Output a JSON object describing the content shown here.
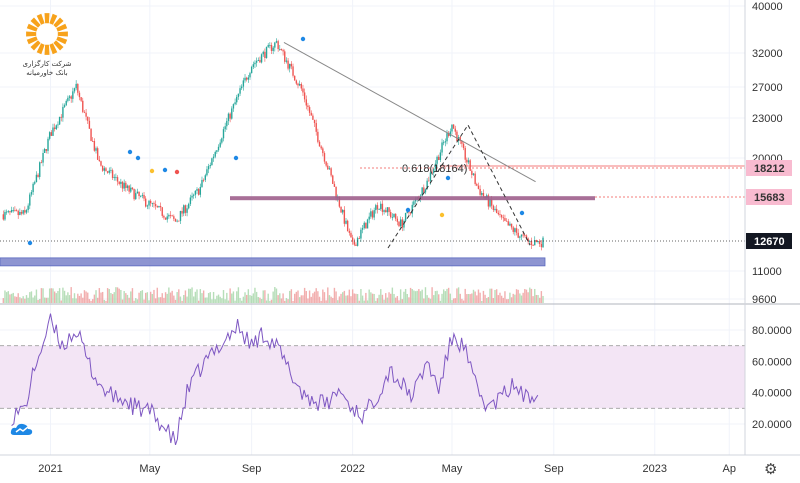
{
  "logo": {
    "line1": "شرکت کارگزاری",
    "line2": "بانک خاورمیانه",
    "icon": "sun-logo-icon"
  },
  "settings": {
    "icon": "gear-icon",
    "glyph": "⚙"
  },
  "colors": {
    "up": "#26a69a",
    "down": "#ef5350",
    "rsi": "#7e57c2",
    "rsi_band": "#f3e5f5",
    "support": "#7b83c9",
    "resistance": "#9e5f8c",
    "fib": "#ef5350",
    "trend": "#888888"
  },
  "chart_data": [
    {
      "type": "candlestick",
      "y_scale": "log",
      "ylim": [
        9000,
        42000
      ],
      "x": [
        "2020-12-01",
        "2021-01-01",
        "2021-02-01",
        "2021-03-01",
        "2021-04-01",
        "2021-05-01",
        "2021-06-01",
        "2021-07-01",
        "2021-08-01",
        "2021-09-01",
        "2021-10-01",
        "2021-11-01",
        "2021-12-01",
        "2022-01-01",
        "2022-02-01",
        "2022-03-01",
        "2022-04-01",
        "2022-05-01",
        "2022-06-01",
        "2022-07-01",
        "2022-08-01"
      ],
      "close": [
        14500,
        21500,
        27000,
        18500,
        16500,
        15200,
        14000,
        16500,
        22500,
        30000,
        33500,
        26500,
        18500,
        12400,
        15300,
        13800,
        17000,
        22500,
        16500,
        14000,
        12670
      ],
      "y_ticks": [
        "40000",
        "32000",
        "27000",
        "23000",
        "20000",
        "11000",
        "9600"
      ],
      "x_ticks": [
        "2021",
        "May",
        "Sep",
        "2022",
        "May",
        "Sep",
        "2023",
        "Ap"
      ],
      "price_tags": [
        "18212",
        "15683",
        "12670"
      ],
      "fib_label": "0.618(18164)",
      "support_level": 11500,
      "resistance_level": 15683,
      "trendline": {
        "from": {
          "x": "2021-10-10",
          "y": 33500
        },
        "to": {
          "x": "2022-08-10",
          "y": 17000
        }
      }
    },
    {
      "type": "line",
      "title": "",
      "y_ticks": [
        "80.0000",
        "60.0000",
        "40.0000",
        "20.0000"
      ],
      "ylim": [
        0,
        95
      ],
      "band": [
        30,
        70
      ],
      "x": [
        "2020-11-15",
        "2020-12-01",
        "2020-12-15",
        "2021-01-01",
        "2021-01-15",
        "2021-02-01",
        "2021-02-15",
        "2021-03-01",
        "2021-03-15",
        "2021-04-01",
        "2021-04-15",
        "2021-05-01",
        "2021-05-15",
        "2021-06-01",
        "2021-06-15",
        "2021-07-01",
        "2021-07-15",
        "2021-08-01",
        "2021-08-15",
        "2021-09-01",
        "2021-09-15",
        "2021-10-01",
        "2021-10-15",
        "2021-11-01",
        "2021-11-15",
        "2021-12-01",
        "2021-12-15",
        "2022-01-01",
        "2022-01-15",
        "2022-02-01",
        "2022-02-15",
        "2022-03-01",
        "2022-03-15",
        "2022-04-01",
        "2022-04-15",
        "2022-05-01",
        "2022-05-15",
        "2022-06-01",
        "2022-06-15",
        "2022-07-01",
        "2022-07-15",
        "2022-08-01",
        "2022-08-15"
      ],
      "values": [
        25,
        30,
        60,
        85,
        70,
        80,
        60,
        45,
        38,
        35,
        30,
        28,
        20,
        8,
        40,
        55,
        65,
        75,
        82,
        70,
        78,
        70,
        55,
        40,
        35,
        32,
        42,
        30,
        25,
        40,
        55,
        45,
        38,
        60,
        42,
        75,
        70,
        40,
        30,
        38,
        45,
        35,
        45
      ]
    }
  ]
}
